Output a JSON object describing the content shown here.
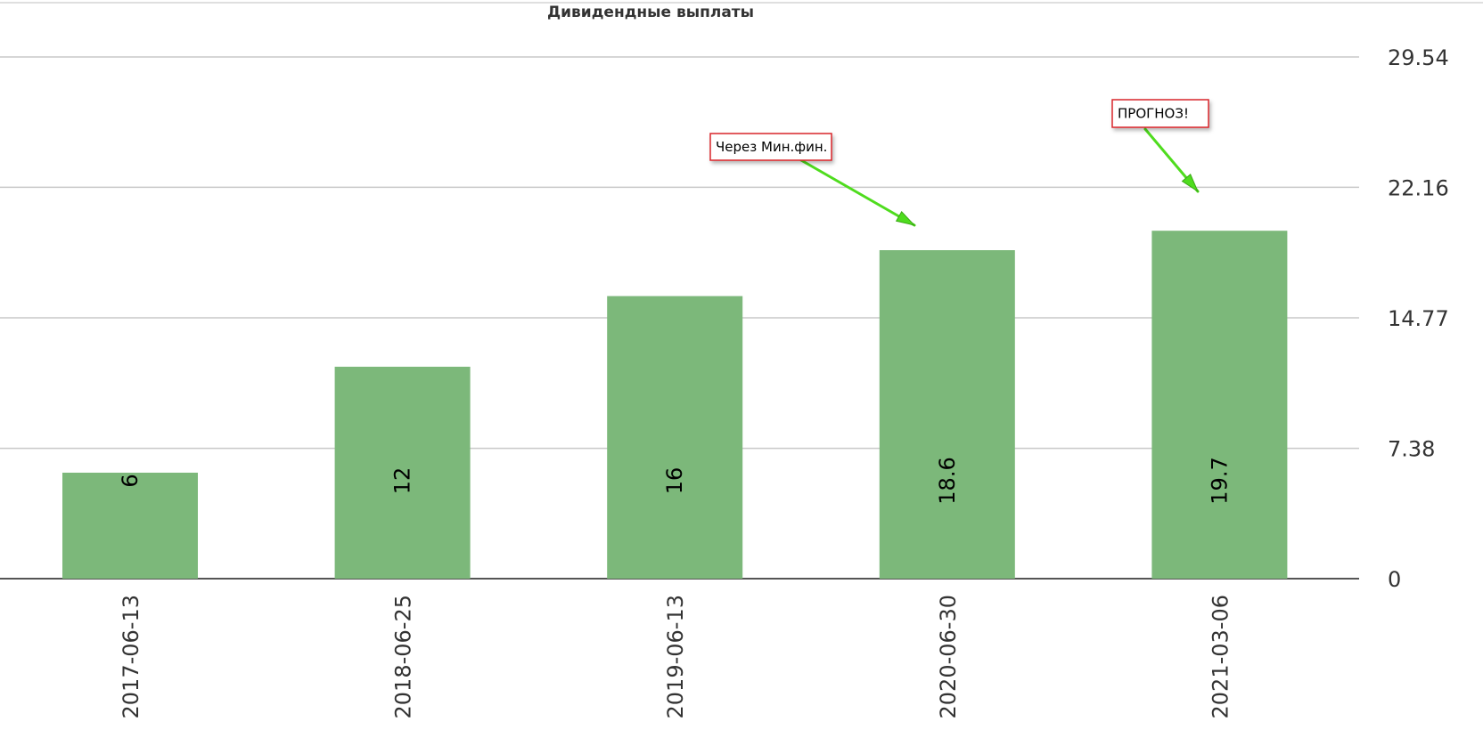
{
  "chart_data": {
    "type": "bar",
    "title": "Дивидендные выплаты",
    "categories": [
      "2017-06-13",
      "2018-06-25",
      "2019-06-13",
      "2020-06-30",
      "2021-03-06"
    ],
    "values": [
      6,
      12,
      16,
      18.6,
      19.7
    ],
    "value_labels": [
      "6",
      "12",
      "16",
      "18.6",
      "19.7"
    ],
    "ylim": [
      0,
      29.54
    ],
    "yticks": [
      0,
      7.38,
      14.77,
      22.16,
      29.54
    ],
    "ytick_labels": [
      "0",
      "7.38",
      "14.77",
      "22.16",
      "29.54"
    ],
    "y_axis_side": "right",
    "grid": true,
    "bar_color": "#7cb87a",
    "annotations": [
      {
        "text": "Через Мин.фин.",
        "target_category": "2020-06-30"
      },
      {
        "text": "ПРОГНОЗ!",
        "target_category": "2021-03-06"
      }
    ],
    "annotation_border_color": "#d9262c",
    "arrow_color": "#4fdc1e"
  }
}
